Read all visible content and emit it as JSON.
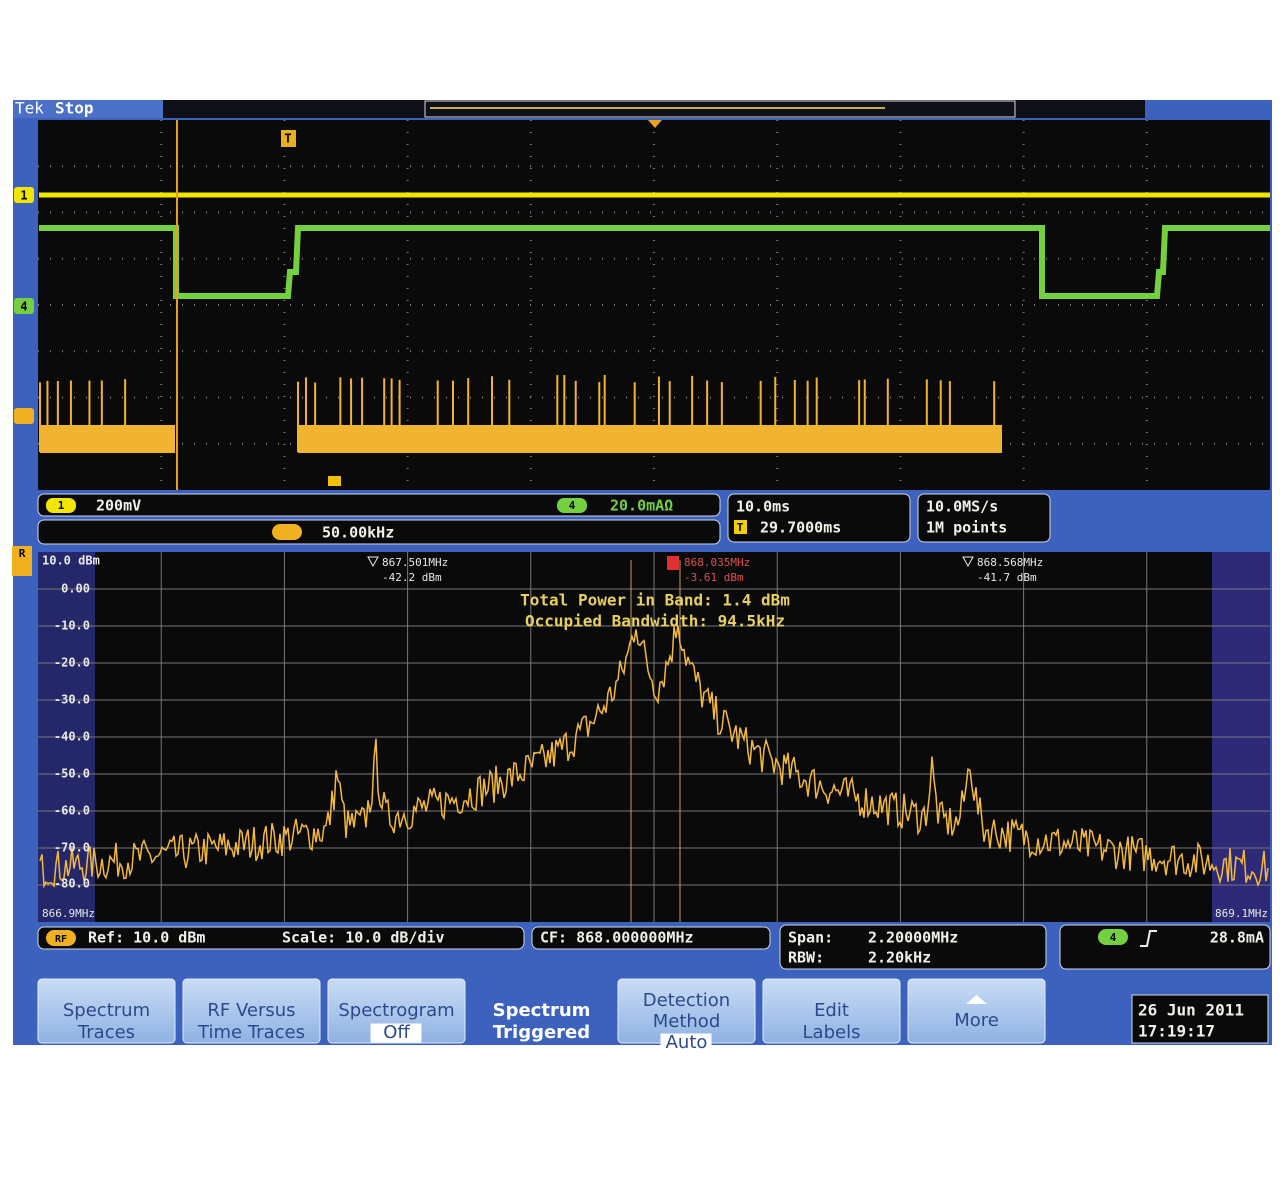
{
  "header": {
    "brand": "Tek",
    "status": "Stop"
  },
  "badges": {
    "ch1": "1",
    "ch4": "4",
    "trigger": "T",
    "rf": "R"
  },
  "readouts": {
    "ch1_badge": "1",
    "ch1_scale": "200mV",
    "ch4_badge": "4",
    "ch4_scale": "20.0mAΩ",
    "bus_freq": "50.00kHz",
    "timebase": "10.0ms",
    "trigger_badge": "T",
    "trigger_pos": "29.7000ms",
    "sample_rate": "10.0MS/s",
    "record_length": "1M points"
  },
  "spectrum": {
    "y_labels": [
      "10.0 dBm",
      "0.00",
      "-10.0",
      "-20.0",
      "-30.0",
      "-40.0",
      "-50.0",
      "-60.0",
      "-70.0",
      "-80.0"
    ],
    "markers": [
      {
        "freq": "867.501MHz",
        "level": "-42.2 dBm"
      },
      {
        "freq": "868.035MHz",
        "level": "-3.61 dBm"
      },
      {
        "freq": "868.568MHz",
        "level": "-41.7 dBm"
      }
    ],
    "measurements": [
      "Total Power in Band: 1.4 dBm",
      "Occupied Bandwidth: 94.5kHz"
    ],
    "start_freq": "866.9MHz",
    "stop_freq": "869.1MHz"
  },
  "spectrum_readouts": {
    "rf_badge": "RF",
    "ref": "Ref: 10.0 dBm",
    "scale": "Scale: 10.0 dB/div",
    "cf": "CF: 868.000000MHz",
    "span_label": "Span:",
    "span": "2.20000MHz",
    "rbw_label": "RBW:",
    "rbw": "2.20kHz",
    "ch4_badge": "4",
    "trigger_level": "28.8mA"
  },
  "menu": [
    {
      "lines": [
        "Spectrum",
        "Traces"
      ]
    },
    {
      "lines": [
        "RF Versus",
        "Time Traces"
      ]
    },
    {
      "lines": [
        "Spectrogram",
        "Off"
      ]
    },
    {
      "lines": [
        "Spectrum",
        "Triggered"
      ]
    },
    {
      "lines": [
        "Detection",
        "Method",
        "Auto"
      ]
    },
    {
      "lines": [
        "Edit",
        "Labels"
      ]
    },
    {
      "lines": [
        "More"
      ]
    }
  ],
  "datetime": {
    "date": "26 Jun 2011",
    "time": "17:19:17"
  }
}
